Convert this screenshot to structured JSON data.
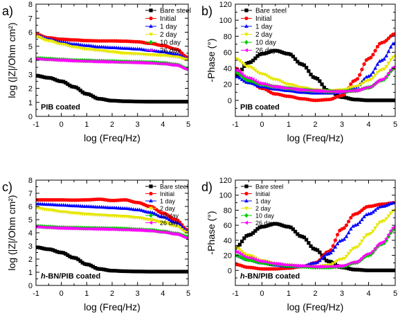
{
  "chart_data": [
    {
      "type": "scatter",
      "panel_label": "a)",
      "annotation": "PIB coated",
      "xlabel": "log (Freq/Hz)",
      "ylabel": "log (|Z|/Ohm cm²)",
      "xlim": [
        -1,
        5
      ],
      "ylim": [
        0,
        8
      ],
      "xticks": [
        "-1",
        "0",
        "1",
        "2",
        "3",
        "4",
        "5"
      ],
      "yticks": [
        "0",
        "1",
        "2",
        "3",
        "4",
        "5",
        "6",
        "7",
        "8"
      ],
      "legend_position": "top-right",
      "series": [
        {
          "name": "Bare steel",
          "color": "#000000",
          "marker": "square",
          "x": [
            -1,
            -0.5,
            0,
            0.5,
            1,
            1.5,
            2,
            2.5,
            3,
            3.5,
            4,
            4.5,
            5
          ],
          "y": [
            2.9,
            2.75,
            2.5,
            2.1,
            1.6,
            1.25,
            1.12,
            1.08,
            1.06,
            1.05,
            1.05,
            1.05,
            1.05
          ]
        },
        {
          "name": "Initial",
          "color": "#ff0000",
          "marker": "circle",
          "x": [
            -1,
            -0.5,
            0,
            0.5,
            1,
            1.5,
            2,
            2.5,
            3,
            3.5,
            4,
            4.5,
            5
          ],
          "y": [
            5.85,
            5.6,
            5.5,
            5.45,
            5.4,
            5.38,
            5.38,
            5.36,
            5.32,
            5.2,
            5.05,
            4.8,
            4.2
          ]
        },
        {
          "name": "1 day",
          "color": "#0000ff",
          "marker": "triangle-up",
          "x": [
            -1,
            -0.5,
            0,
            0.5,
            1,
            1.5,
            2,
            2.5,
            3,
            3.5,
            4,
            4.5,
            5
          ],
          "y": [
            5.75,
            5.5,
            5.3,
            5.15,
            5.05,
            4.95,
            4.9,
            4.85,
            4.8,
            4.7,
            4.6,
            4.45,
            4.1
          ]
        },
        {
          "name": "2 day",
          "color": "#e6e600",
          "marker": "triangle-down",
          "x": [
            -1,
            -0.5,
            0,
            0.5,
            1,
            1.5,
            2,
            2.5,
            3,
            3.5,
            4,
            4.5,
            5
          ],
          "y": [
            5.7,
            5.4,
            5.15,
            4.95,
            4.8,
            4.7,
            4.6,
            4.5,
            4.45,
            4.4,
            4.35,
            4.25,
            4.05
          ]
        },
        {
          "name": "10 day",
          "color": "#00cc00",
          "marker": "diamond",
          "x": [
            -1,
            -0.5,
            0,
            0.5,
            1,
            1.5,
            2,
            2.5,
            3,
            3.5,
            4,
            4.5,
            5
          ],
          "y": [
            4.15,
            4.1,
            4.05,
            4.0,
            3.98,
            3.95,
            3.93,
            3.9,
            3.88,
            3.85,
            3.8,
            3.7,
            3.4
          ]
        },
        {
          "name": "26 day",
          "color": "#ff00ff",
          "marker": "triangle-left",
          "x": [
            -1,
            -0.5,
            0,
            0.5,
            1,
            1.5,
            2,
            2.5,
            3,
            3.5,
            4,
            4.5,
            5
          ],
          "y": [
            4.1,
            4.05,
            4.0,
            3.96,
            3.93,
            3.9,
            3.88,
            3.86,
            3.83,
            3.8,
            3.75,
            3.65,
            3.35
          ]
        }
      ]
    },
    {
      "type": "scatter",
      "panel_label": "b)",
      "annotation": "PIB coated",
      "xlabel": "log (Freq/Hz)",
      "ylabel": "-Phase (°)",
      "xlim": [
        -1,
        5
      ],
      "ylim": [
        -20,
        120
      ],
      "xticks": [
        "-1",
        "0",
        "1",
        "2",
        "3",
        "4",
        "5"
      ],
      "yticks": [
        "0",
        "20",
        "40",
        "60",
        "80",
        "100",
        "120"
      ],
      "legend_position": "top-left",
      "series": [
        {
          "name": "Bare steel",
          "color": "#000000",
          "marker": "square",
          "x": [
            -1,
            -0.5,
            0,
            0.5,
            1,
            1.5,
            2,
            2.5,
            3,
            3.5,
            4,
            4.5,
            5
          ],
          "y": [
            30,
            47,
            58,
            62,
            58,
            45,
            28,
            12,
            4,
            1,
            0,
            0,
            0
          ]
        },
        {
          "name": "Initial",
          "color": "#ff0000",
          "marker": "circle",
          "x": [
            -1,
            -0.5,
            0,
            0.5,
            1,
            1.5,
            2,
            2.5,
            3,
            3.5,
            4,
            4.5,
            5
          ],
          "y": [
            40,
            25,
            15,
            8,
            5,
            2,
            0,
            1,
            6,
            25,
            52,
            72,
            83
          ]
        },
        {
          "name": "1 day",
          "color": "#0000ff",
          "marker": "triangle-up",
          "x": [
            -1,
            -0.5,
            0,
            0.5,
            1,
            1.5,
            2,
            2.5,
            3,
            3.5,
            4,
            4.5,
            5
          ],
          "y": [
            30,
            22,
            17,
            14,
            12,
            10,
            9,
            9,
            10,
            16,
            30,
            50,
            72
          ]
        },
        {
          "name": "2 day",
          "color": "#e6e600",
          "marker": "triangle-down",
          "x": [
            -1,
            -0.5,
            0,
            0.5,
            1,
            1.5,
            2,
            2.5,
            3,
            3.5,
            4,
            4.5,
            5
          ],
          "y": [
            52,
            42,
            33,
            26,
            20,
            16,
            13,
            12,
            13,
            17,
            25,
            38,
            55
          ]
        },
        {
          "name": "10 day",
          "color": "#00cc00",
          "marker": "diamond",
          "x": [
            -1,
            -0.5,
            0,
            0.5,
            1,
            1.5,
            2,
            2.5,
            3,
            3.5,
            4,
            4.5,
            5
          ],
          "y": [
            35,
            25,
            20,
            17,
            15,
            13,
            12,
            11,
            11,
            12,
            16,
            25,
            40
          ]
        },
        {
          "name": "26 day",
          "color": "#ff00ff",
          "marker": "triangle-left",
          "x": [
            -1,
            -0.5,
            0,
            0.5,
            1,
            1.5,
            2,
            2.5,
            3,
            3.5,
            4,
            4.5,
            5
          ],
          "y": [
            38,
            28,
            21,
            17,
            15,
            13,
            12,
            11,
            11,
            12,
            16,
            26,
            42
          ]
        }
      ]
    },
    {
      "type": "scatter",
      "panel_label": "c)",
      "annotation": "h-BN/PIB coated",
      "xlabel": "log (Freq/Hz)",
      "ylabel": "log (|Z|/Ohm cm²)",
      "xlim": [
        -1,
        5
      ],
      "ylim": [
        0,
        8
      ],
      "xticks": [
        "-1",
        "0",
        "1",
        "2",
        "3",
        "4",
        "5"
      ],
      "yticks": [
        "0",
        "1",
        "2",
        "3",
        "4",
        "5",
        "6",
        "7",
        "8"
      ],
      "legend_position": "top-right",
      "series": [
        {
          "name": "Bare steel",
          "color": "#000000",
          "marker": "square",
          "x": [
            -1,
            -0.5,
            0,
            0.5,
            1,
            1.5,
            2,
            2.5,
            3,
            3.5,
            4,
            4.5,
            5
          ],
          "y": [
            2.9,
            2.75,
            2.5,
            2.1,
            1.6,
            1.25,
            1.12,
            1.08,
            1.06,
            1.05,
            1.05,
            1.05,
            1.05
          ]
        },
        {
          "name": "Initial",
          "color": "#ff0000",
          "marker": "circle",
          "x": [
            -1,
            -0.5,
            0,
            0.5,
            1,
            1.5,
            2,
            2.5,
            3,
            3.5,
            4,
            4.5,
            5
          ],
          "y": [
            6.5,
            6.5,
            6.5,
            6.48,
            6.5,
            6.55,
            6.45,
            6.5,
            6.3,
            6.0,
            5.5,
            5.0,
            4.2
          ]
        },
        {
          "name": "1 day",
          "color": "#0000ff",
          "marker": "triangle-up",
          "x": [
            -1,
            -0.5,
            0,
            0.5,
            1,
            1.5,
            2,
            2.5,
            3,
            3.5,
            4,
            4.5,
            5
          ],
          "y": [
            6.2,
            6.15,
            6.1,
            6.05,
            6.0,
            5.95,
            5.9,
            5.85,
            5.75,
            5.55,
            5.2,
            4.8,
            4.1
          ]
        },
        {
          "name": "2 day",
          "color": "#e6e600",
          "marker": "triangle-down",
          "x": [
            -1,
            -0.5,
            0,
            0.5,
            1,
            1.5,
            2,
            2.5,
            3,
            3.5,
            4,
            4.5,
            5
          ],
          "y": [
            5.9,
            5.75,
            5.6,
            5.5,
            5.42,
            5.35,
            5.3,
            5.25,
            5.15,
            5.0,
            4.8,
            4.5,
            4.0
          ]
        },
        {
          "name": "10 day",
          "color": "#00cc00",
          "marker": "diamond",
          "x": [
            -1,
            -0.5,
            0,
            0.5,
            1,
            1.5,
            2,
            2.5,
            3,
            3.5,
            4,
            4.5,
            5
          ],
          "y": [
            4.5,
            4.45,
            4.4,
            4.38,
            4.36,
            4.35,
            4.33,
            4.3,
            4.25,
            4.2,
            4.1,
            3.95,
            3.7
          ]
        },
        {
          "name": "26 day",
          "color": "#ff00ff",
          "marker": "triangle-left",
          "x": [
            -1,
            -0.5,
            0,
            0.5,
            1,
            1.5,
            2,
            2.5,
            3,
            3.5,
            4,
            4.5,
            5
          ],
          "y": [
            4.45,
            4.4,
            4.35,
            4.33,
            4.3,
            4.28,
            4.26,
            4.23,
            4.2,
            4.15,
            4.05,
            3.9,
            3.6
          ]
        }
      ]
    },
    {
      "type": "scatter",
      "panel_label": "d)",
      "annotation": "h-BN/PIB coated",
      "xlabel": "log (Freq/Hz)",
      "ylabel": "-Phase (°)",
      "xlim": [
        -1,
        5
      ],
      "ylim": [
        -20,
        120
      ],
      "xticks": [
        "-1",
        "0",
        "1",
        "2",
        "3",
        "4",
        "5"
      ],
      "yticks": [
        "0",
        "20",
        "40",
        "60",
        "80",
        "100",
        "120"
      ],
      "legend_position": "top-left",
      "series": [
        {
          "name": "Bare steel",
          "color": "#000000",
          "marker": "square",
          "x": [
            -1,
            -0.5,
            0,
            0.5,
            1,
            1.5,
            2,
            2.5,
            3,
            3.5,
            4,
            4.5,
            5
          ],
          "y": [
            30,
            47,
            58,
            62,
            58,
            45,
            28,
            12,
            4,
            1,
            0,
            0,
            0
          ]
        },
        {
          "name": "Initial",
          "color": "#ff0000",
          "marker": "circle",
          "x": [
            -1,
            -0.5,
            0,
            0.5,
            1,
            1.5,
            2,
            2.5,
            3,
            3.5,
            4,
            4.5,
            5
          ],
          "y": [
            8,
            4,
            2,
            2,
            3,
            5,
            10,
            25,
            55,
            75,
            85,
            88,
            90
          ]
        },
        {
          "name": "1 day",
          "color": "#0000ff",
          "marker": "triangle-up",
          "x": [
            -1,
            -0.5,
            0,
            0.5,
            1,
            1.5,
            2,
            2.5,
            3,
            3.5,
            4,
            4.5,
            5
          ],
          "y": [
            20,
            14,
            10,
            7,
            5,
            5,
            10,
            22,
            40,
            60,
            75,
            85,
            90
          ]
        },
        {
          "name": "2 day",
          "color": "#e6e600",
          "marker": "triangle-down",
          "x": [
            -1,
            -0.5,
            0,
            0.5,
            1,
            1.5,
            2,
            2.5,
            3,
            3.5,
            4,
            4.5,
            5
          ],
          "y": [
            30,
            20,
            13,
            9,
            7,
            5,
            5,
            7,
            15,
            30,
            48,
            65,
            80
          ]
        },
        {
          "name": "10 day",
          "color": "#00cc00",
          "marker": "diamond",
          "x": [
            -1,
            -0.5,
            0,
            0.5,
            1,
            1.5,
            2,
            2.5,
            3,
            3.5,
            4,
            4.5,
            5
          ],
          "y": [
            20,
            14,
            10,
            8,
            6,
            5,
            4,
            4,
            5,
            10,
            20,
            35,
            55
          ]
        },
        {
          "name": "26 day",
          "color": "#ff00ff",
          "marker": "triangle-left",
          "x": [
            -1,
            -0.5,
            0,
            0.5,
            1,
            1.5,
            2,
            2.5,
            3,
            3.5,
            4,
            4.5,
            5
          ],
          "y": [
            25,
            17,
            12,
            9,
            7,
            6,
            5,
            5,
            6,
            11,
            22,
            37,
            58
          ]
        }
      ]
    }
  ]
}
